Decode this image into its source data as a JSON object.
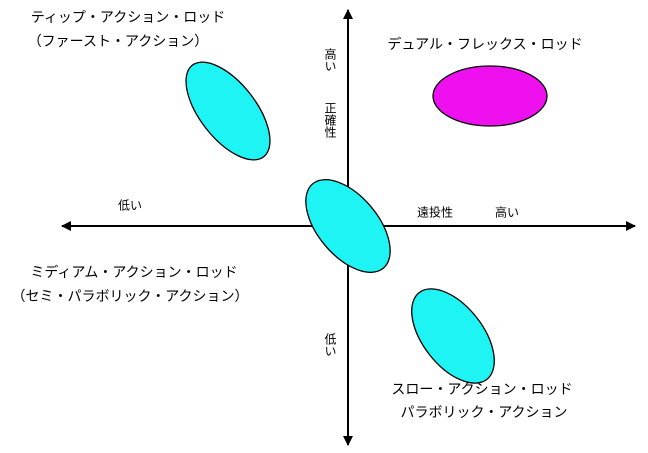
{
  "axes": {
    "y": {
      "high": "高い",
      "label": "正確性",
      "low": "低い"
    },
    "x": {
      "low": "低い",
      "label": "遠投性",
      "high": "高い"
    }
  },
  "nodes": [
    {
      "label": [
        "ティップ・アクション・ロッド",
        "（ファースト・アクション）"
      ]
    },
    {
      "label": [
        "デュアル・フレックス・ロッド"
      ]
    },
    {
      "label": [
        "ミディアム・アクション・ロッド",
        "（セミ・パラボリック・アクション）"
      ]
    },
    {
      "label": [
        "スロー・アクション・ロッド",
        "パラボリック・アクション"
      ]
    }
  ]
}
